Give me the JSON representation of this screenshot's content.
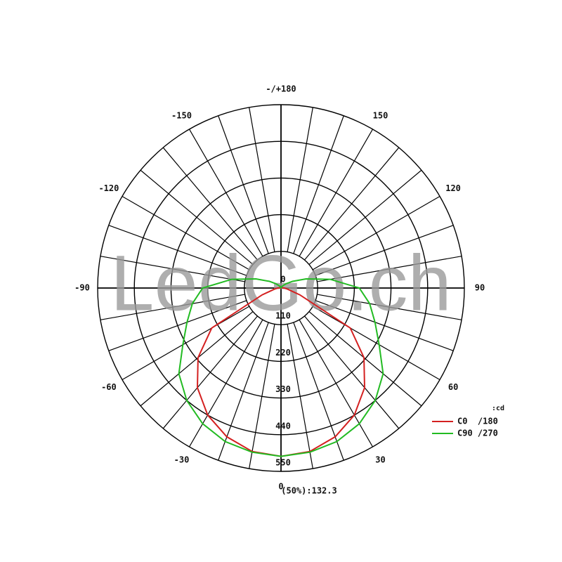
{
  "chart_data": {
    "type": "polar",
    "watermark": "LedGo.ch",
    "note": "(50%):132.3",
    "unit": ":cd",
    "rlim": [
      0,
      550
    ],
    "rticks": [
      0,
      110,
      220,
      330,
      440,
      550
    ],
    "angle_ticks": [
      {
        "value": 180,
        "label": "-/+180"
      },
      -150,
      -120,
      -90,
      -60,
      -30,
      0,
      30,
      60,
      90,
      120,
      150
    ],
    "x": [
      -180,
      -170,
      -160,
      -150,
      -140,
      -130,
      -120,
      -110,
      -100,
      -90,
      -80,
      -70,
      -60,
      -50,
      -40,
      -30,
      -20,
      -10,
      0,
      10,
      20,
      30,
      40,
      50,
      60,
      70,
      80,
      90,
      100,
      110,
      120,
      130,
      140,
      150,
      160,
      170,
      180
    ],
    "series": [
      {
        "name": "C0  /180",
        "color": "#d42020",
        "values": [
          0,
          0,
          0,
          0,
          0,
          0,
          2,
          3,
          5,
          10,
          20,
          60,
          240,
          325,
          390,
          440,
          475,
          498,
          505,
          498,
          475,
          440,
          390,
          325,
          240,
          60,
          20,
          10,
          5,
          3,
          2,
          0,
          0,
          0,
          0,
          0,
          0
        ]
      },
      {
        "name": "C90 /270",
        "color": "#22bb22",
        "values": [
          0,
          0,
          0,
          5,
          10,
          20,
          40,
          80,
          150,
          235,
          270,
          300,
          340,
          400,
          440,
          470,
          490,
          500,
          505,
          500,
          490,
          470,
          440,
          400,
          340,
          300,
          270,
          235,
          150,
          80,
          40,
          20,
          10,
          5,
          0,
          0,
          0
        ]
      }
    ]
  }
}
